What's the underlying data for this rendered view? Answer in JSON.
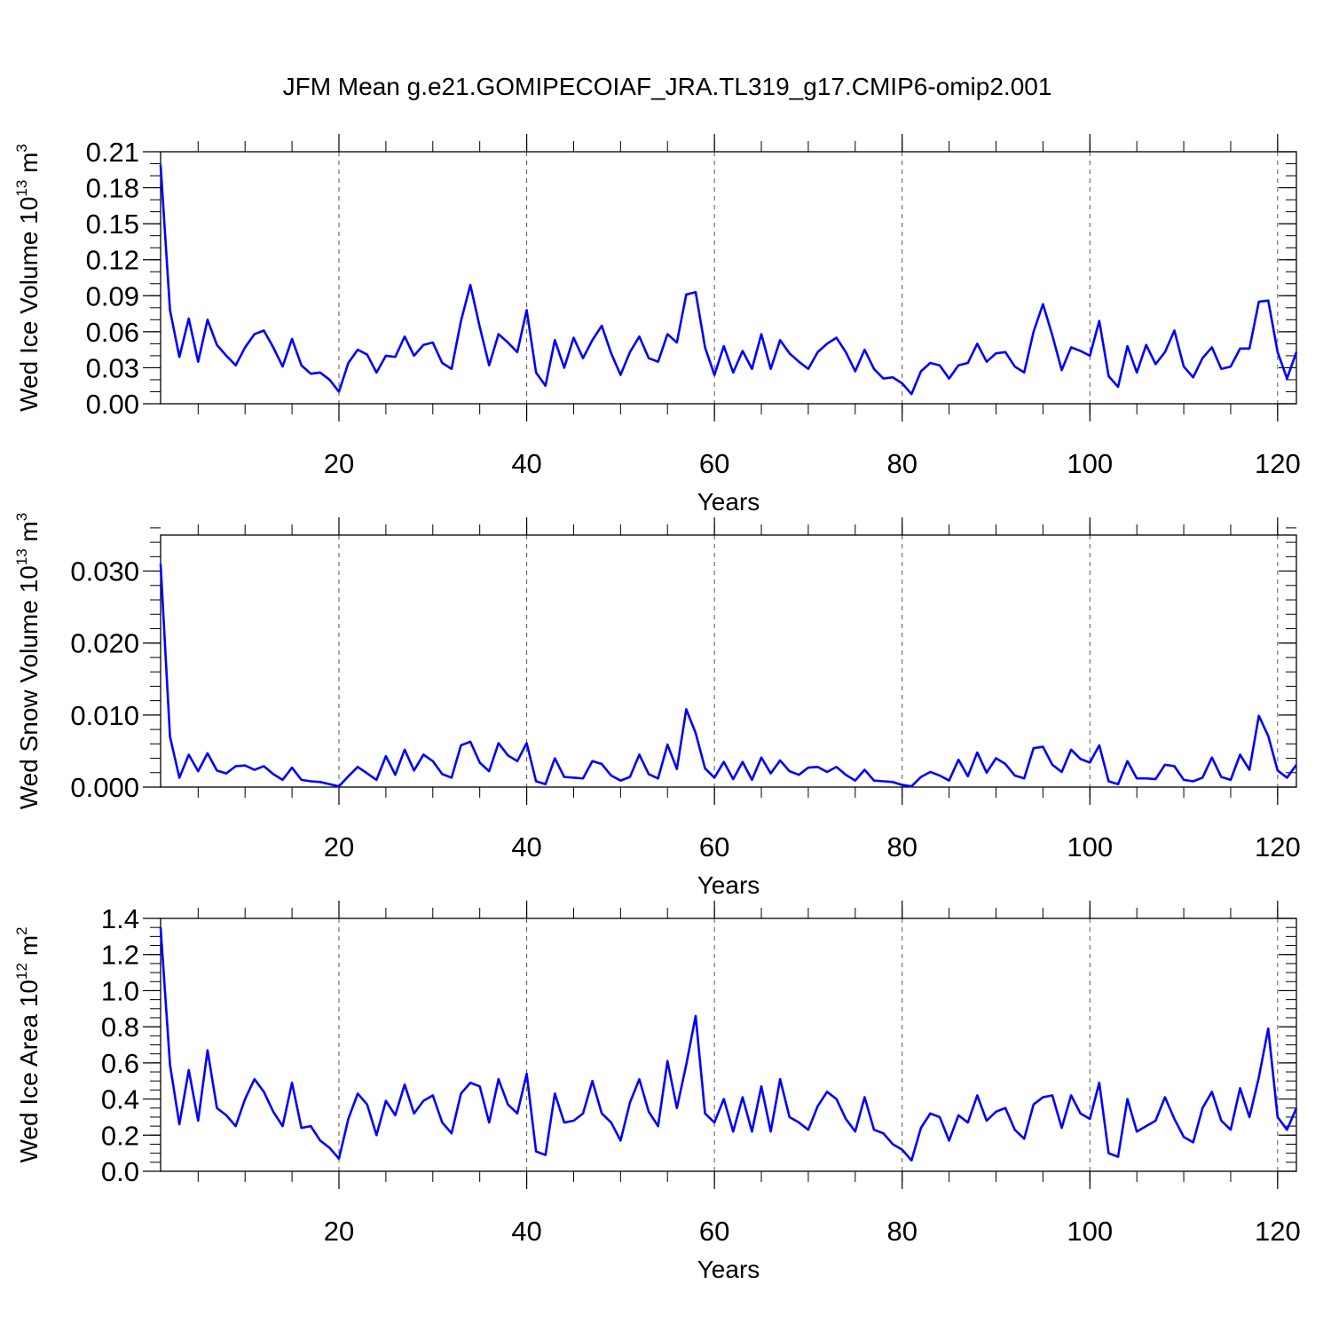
{
  "title": "JFM Mean g.e21.GOMIPECOIAF_JRA.TL319_g17.CMIP6-omip2.001",
  "line_color": "#0000ff",
  "chart_data": [
    {
      "type": "line",
      "series_name": "Wed Ice Volume",
      "ylabel": "Wed Ice Volume 10",
      "ylabel_exp": "13",
      "ylabel_unit": " m",
      "ylabel_unit_exp": "3",
      "xlabel": "Years",
      "xlim": [
        1,
        122
      ],
      "ylim": [
        0,
        0.21
      ],
      "xticks": [
        20,
        40,
        60,
        80,
        100,
        120
      ],
      "xtick_labels": [
        "20",
        "40",
        "60",
        "80",
        "100",
        "120"
      ],
      "yticks": [
        0,
        0.03,
        0.06,
        0.09,
        0.12,
        0.15,
        0.18,
        0.21
      ],
      "ytick_labels": [
        "0.00",
        "0.03",
        "0.06",
        "0.09",
        "0.12",
        "0.15",
        "0.18",
        "0.21"
      ],
      "yminor": 0.01,
      "values": [
        0.199,
        0.078,
        0.039,
        0.071,
        0.035,
        0.07,
        0.049,
        0.04,
        0.032,
        0.047,
        0.058,
        0.061,
        0.047,
        0.031,
        0.054,
        0.032,
        0.025,
        0.026,
        0.02,
        0.01,
        0.034,
        0.045,
        0.041,
        0.026,
        0.04,
        0.039,
        0.056,
        0.04,
        0.049,
        0.051,
        0.034,
        0.029,
        0.069,
        0.099,
        0.064,
        0.032,
        0.058,
        0.051,
        0.043,
        0.078,
        0.026,
        0.015,
        0.053,
        0.03,
        0.055,
        0.038,
        0.053,
        0.065,
        0.042,
        0.024,
        0.043,
        0.056,
        0.038,
        0.035,
        0.058,
        0.051,
        0.091,
        0.093,
        0.047,
        0.024,
        0.048,
        0.026,
        0.044,
        0.029,
        0.058,
        0.029,
        0.053,
        0.042,
        0.035,
        0.029,
        0.043,
        0.05,
        0.055,
        0.043,
        0.027,
        0.045,
        0.029,
        0.021,
        0.022,
        0.017,
        0.008,
        0.027,
        0.034,
        0.032,
        0.021,
        0.032,
        0.034,
        0.05,
        0.035,
        0.042,
        0.043,
        0.031,
        0.026,
        0.06,
        0.083,
        0.057,
        0.028,
        0.047,
        0.044,
        0.04,
        0.069,
        0.023,
        0.014,
        0.048,
        0.026,
        0.049,
        0.033,
        0.043,
        0.061,
        0.031,
        0.022,
        0.038,
        0.047,
        0.029,
        0.031,
        0.046,
        0.046,
        0.085,
        0.086,
        0.043,
        0.021,
        0.043
      ]
    },
    {
      "type": "line",
      "series_name": "Wed Snow Volume",
      "ylabel": "Wed Snow Volume 10",
      "ylabel_exp": "13",
      "ylabel_unit": " m",
      "ylabel_unit_exp": "3",
      "xlabel": "Years",
      "xlim": [
        1,
        122
      ],
      "ylim": [
        0,
        0.035
      ],
      "xticks": [
        20,
        40,
        60,
        80,
        100,
        120
      ],
      "xtick_labels": [
        "20",
        "40",
        "60",
        "80",
        "100",
        "120"
      ],
      "yticks": [
        0,
        0.01,
        0.02,
        0.03
      ],
      "ytick_labels": [
        "0.000",
        "0.010",
        "0.020",
        "0.030"
      ],
      "yminor": 0.002,
      "values": [
        0.031,
        0.007,
        0.0013,
        0.0045,
        0.0022,
        0.0047,
        0.0023,
        0.0019,
        0.0029,
        0.003,
        0.0024,
        0.0029,
        0.0018,
        0.001,
        0.0027,
        0.001,
        0.0008,
        0.0007,
        0.0004,
        0.0001,
        0.0015,
        0.0028,
        0.0019,
        0.001,
        0.0043,
        0.0017,
        0.0052,
        0.0023,
        0.0045,
        0.0036,
        0.0018,
        0.0013,
        0.0058,
        0.0063,
        0.0034,
        0.0022,
        0.0061,
        0.0044,
        0.0036,
        0.0061,
        0.0008,
        0.0004,
        0.004,
        0.0014,
        0.0013,
        0.0012,
        0.0036,
        0.0032,
        0.0016,
        0.0009,
        0.0014,
        0.0045,
        0.0018,
        0.0012,
        0.0059,
        0.0025,
        0.0108,
        0.0075,
        0.0026,
        0.0013,
        0.0035,
        0.0011,
        0.0035,
        0.001,
        0.0041,
        0.0019,
        0.0037,
        0.0022,
        0.0017,
        0.0027,
        0.0028,
        0.0021,
        0.0028,
        0.0017,
        0.0009,
        0.0024,
        0.0009,
        0.0008,
        0.0007,
        0.0003,
        0.0001,
        0.0014,
        0.0021,
        0.0016,
        0.0009,
        0.0038,
        0.0015,
        0.0048,
        0.002,
        0.004,
        0.0032,
        0.0016,
        0.0012,
        0.0054,
        0.0056,
        0.0031,
        0.0021,
        0.0052,
        0.0039,
        0.0034,
        0.0058,
        0.0008,
        0.0004,
        0.0036,
        0.0012,
        0.0012,
        0.0011,
        0.0031,
        0.0029,
        0.001,
        0.0008,
        0.0013,
        0.0041,
        0.0014,
        0.001,
        0.0045,
        0.0024,
        0.0099,
        0.0071,
        0.0023,
        0.0013,
        0.0031
      ]
    },
    {
      "type": "line",
      "series_name": "Wed Ice Area",
      "ylabel": "Wed Ice Area 10",
      "ylabel_exp": "12",
      "ylabel_unit": " m",
      "ylabel_unit_exp": "2",
      "xlabel": "Years",
      "xlim": [
        1,
        122
      ],
      "ylim": [
        0,
        1.4
      ],
      "xticks": [
        20,
        40,
        60,
        80,
        100,
        120
      ],
      "xtick_labels": [
        "20",
        "40",
        "60",
        "80",
        "100",
        "120"
      ],
      "yticks": [
        0,
        0.2,
        0.4,
        0.6,
        0.8,
        1.0,
        1.2,
        1.4
      ],
      "ytick_labels": [
        "0.0",
        "0.2",
        "0.4",
        "0.6",
        "0.8",
        "1.0",
        "1.2",
        "1.4"
      ],
      "yminor": 0.05,
      "values": [
        1.35,
        0.59,
        0.26,
        0.56,
        0.28,
        0.67,
        0.35,
        0.31,
        0.25,
        0.4,
        0.51,
        0.44,
        0.33,
        0.25,
        0.49,
        0.24,
        0.25,
        0.17,
        0.13,
        0.07,
        0.29,
        0.43,
        0.37,
        0.2,
        0.39,
        0.31,
        0.48,
        0.32,
        0.39,
        0.42,
        0.27,
        0.21,
        0.43,
        0.49,
        0.47,
        0.27,
        0.51,
        0.37,
        0.32,
        0.54,
        0.11,
        0.09,
        0.43,
        0.27,
        0.28,
        0.32,
        0.5,
        0.32,
        0.27,
        0.17,
        0.38,
        0.51,
        0.33,
        0.25,
        0.61,
        0.35,
        0.59,
        0.86,
        0.32,
        0.27,
        0.4,
        0.22,
        0.41,
        0.22,
        0.47,
        0.22,
        0.51,
        0.3,
        0.27,
        0.23,
        0.36,
        0.44,
        0.4,
        0.29,
        0.22,
        0.41,
        0.23,
        0.21,
        0.15,
        0.12,
        0.06,
        0.24,
        0.32,
        0.3,
        0.17,
        0.31,
        0.27,
        0.42,
        0.28,
        0.33,
        0.35,
        0.23,
        0.18,
        0.37,
        0.41,
        0.42,
        0.24,
        0.42,
        0.32,
        0.29,
        0.49,
        0.1,
        0.08,
        0.4,
        0.22,
        0.25,
        0.28,
        0.41,
        0.29,
        0.19,
        0.16,
        0.35,
        0.44,
        0.28,
        0.23,
        0.46,
        0.3,
        0.52,
        0.79,
        0.3,
        0.23,
        0.35
      ]
    }
  ]
}
